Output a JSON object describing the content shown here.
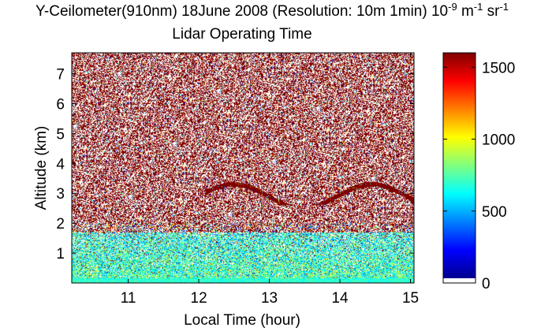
{
  "chart_data": {
    "type": "heatmap",
    "title_parts": {
      "main": "Y-Ceilometer(910nm) 18June 2008 (Resolution: 10m 1min) 10",
      "exp1": "-9",
      "mid": " m",
      "exp2": "-1",
      "end": " sr",
      "exp3": "-1"
    },
    "subtitle": "Lidar Operating Time",
    "xlabel": "Local Time (hour)",
    "ylabel": "Altitude (km)",
    "xlim": [
      10.2,
      15.05
    ],
    "ylim": [
      0,
      7.7
    ],
    "x_ticks": [
      11,
      12,
      13,
      14,
      15
    ],
    "y_ticks": [
      1,
      2,
      3,
      4,
      5,
      6,
      7
    ],
    "colorbar": {
      "range": [
        0,
        1600
      ],
      "ticks": [
        0,
        500,
        1000,
        1500
      ],
      "colormap": "jet",
      "min_color": "#ffffff"
    },
    "structure": {
      "near_surface_layer_km": [
        0,
        0.15
      ],
      "boundary_layer_top_km": 1.7,
      "saturated_above_km": 2.0,
      "aerosol_layer_km": [
        2.6,
        3.4
      ]
    }
  }
}
